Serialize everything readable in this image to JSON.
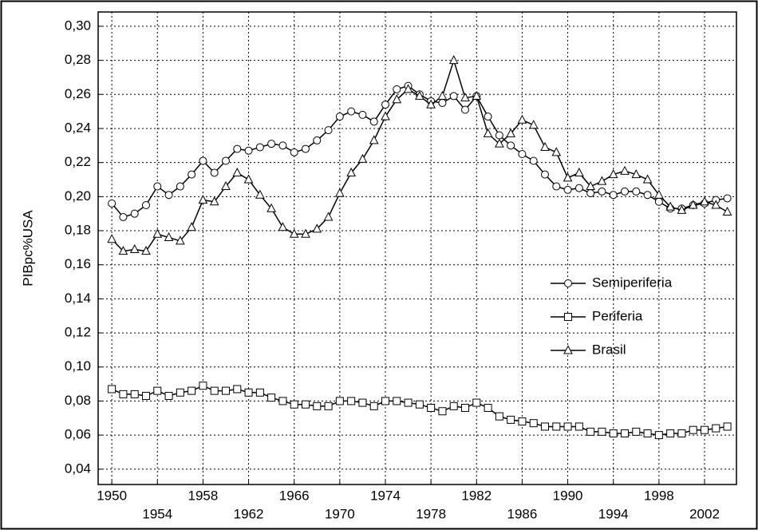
{
  "chart_data": {
    "type": "line",
    "y_label": "PIBpc%USA",
    "x": [
      1950,
      1951,
      1952,
      1953,
      1954,
      1955,
      1956,
      1957,
      1958,
      1959,
      1960,
      1961,
      1962,
      1963,
      1964,
      1965,
      1966,
      1967,
      1968,
      1969,
      1970,
      1971,
      1972,
      1973,
      1974,
      1975,
      1976,
      1977,
      1978,
      1979,
      1980,
      1981,
      1982,
      1983,
      1984,
      1985,
      1986,
      1987,
      1988,
      1989,
      1990,
      1991,
      1992,
      1993,
      1994,
      1995,
      1996,
      1997,
      1998,
      1999,
      2000,
      2001,
      2002,
      2003,
      2004
    ],
    "series": [
      {
        "name": "Semiperiferia",
        "color": "#000000",
        "marker": "circle",
        "values": [
          0.196,
          0.188,
          0.19,
          0.195,
          0.206,
          0.201,
          0.206,
          0.213,
          0.221,
          0.214,
          0.221,
          0.228,
          0.227,
          0.229,
          0.231,
          0.23,
          0.226,
          0.228,
          0.233,
          0.239,
          0.247,
          0.25,
          0.248,
          0.244,
          0.254,
          0.263,
          0.265,
          0.26,
          0.256,
          0.255,
          0.259,
          0.251,
          0.259,
          0.247,
          0.236,
          0.23,
          0.225,
          0.221,
          0.213,
          0.206,
          0.204,
          0.205,
          0.202,
          0.203,
          0.201,
          0.203,
          0.203,
          0.201,
          0.197,
          0.193,
          0.193,
          0.195,
          0.196,
          0.198,
          0.199
        ]
      },
      {
        "name": "Periferia",
        "color": "#000000",
        "marker": "square",
        "values": [
          0.087,
          0.084,
          0.084,
          0.083,
          0.086,
          0.083,
          0.085,
          0.086,
          0.089,
          0.086,
          0.086,
          0.087,
          0.085,
          0.085,
          0.082,
          0.08,
          0.078,
          0.078,
          0.077,
          0.077,
          0.08,
          0.08,
          0.079,
          0.077,
          0.08,
          0.08,
          0.079,
          0.078,
          0.076,
          0.074,
          0.077,
          0.076,
          0.079,
          0.076,
          0.071,
          0.069,
          0.068,
          0.067,
          0.065,
          0.065,
          0.065,
          0.065,
          0.062,
          0.062,
          0.061,
          0.061,
          0.062,
          0.061,
          0.06,
          0.061,
          0.061,
          0.063,
          0.063,
          0.064,
          0.065
        ]
      },
      {
        "name": "Brasil",
        "color": "#000000",
        "marker": "triangle",
        "values": [
          0.175,
          0.168,
          0.169,
          0.168,
          0.178,
          0.176,
          0.174,
          0.182,
          0.198,
          0.197,
          0.206,
          0.214,
          0.21,
          0.201,
          0.193,
          0.182,
          0.178,
          0.178,
          0.181,
          0.188,
          0.202,
          0.214,
          0.222,
          0.233,
          0.247,
          0.257,
          0.263,
          0.259,
          0.254,
          0.259,
          0.28,
          0.258,
          0.259,
          0.237,
          0.231,
          0.237,
          0.245,
          0.242,
          0.229,
          0.226,
          0.211,
          0.214,
          0.206,
          0.209,
          0.213,
          0.215,
          0.213,
          0.21,
          0.201,
          0.194,
          0.192,
          0.195,
          0.197,
          0.195,
          0.191
        ]
      }
    ],
    "xlim": [
      1948.8,
      2004.8
    ],
    "xticks": [
      1950,
      1954,
      1958,
      1962,
      1966,
      1970,
      1974,
      1978,
      1982,
      1986,
      1990,
      1994,
      1998,
      2002
    ],
    "ylim": [
      0.031,
      0.3084
    ],
    "yticks": [
      {
        "value": 0.04,
        "label": "0,04"
      },
      {
        "value": 0.06,
        "label": "0,06"
      },
      {
        "value": 0.08,
        "label": "0,08"
      },
      {
        "value": 0.1,
        "label": "0,10"
      },
      {
        "value": 0.12,
        "label": "0,12"
      },
      {
        "value": 0.14,
        "label": "0,14"
      },
      {
        "value": 0.16,
        "label": "0,16"
      },
      {
        "value": 0.18,
        "label": "0,18"
      },
      {
        "value": 0.2,
        "label": "0,20"
      },
      {
        "value": 0.22,
        "label": "0,22"
      },
      {
        "value": 0.24,
        "label": "0,24"
      },
      {
        "value": 0.26,
        "label": "0,26"
      },
      {
        "value": 0.28,
        "label": "0,28"
      },
      {
        "value": 0.3,
        "label": "0,30"
      }
    ],
    "grid": true,
    "legend": "right"
  }
}
